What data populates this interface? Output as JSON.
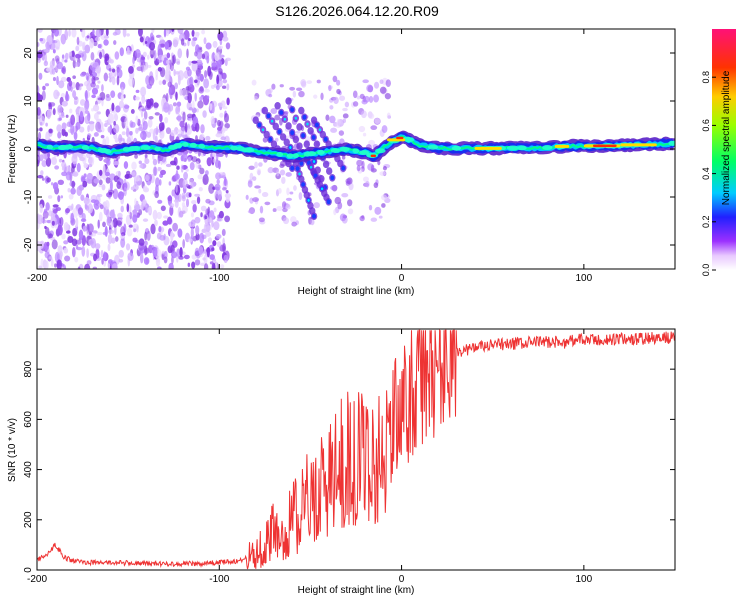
{
  "title": "S126.2026.064.12.20.R09",
  "colors": {
    "snr_line": "#ee3333",
    "axis": "#000000",
    "background": "#ffffff"
  },
  "chart_data": [
    {
      "type": "heatmap",
      "title": "S126.2026.064.12.20.R09",
      "xlabel": "Height of straight line (km)",
      "ylabel": "Frequency (Hz)",
      "xlim": [
        -200,
        150
      ],
      "ylim": [
        -25,
        25
      ],
      "x_ticks": [
        -200,
        -100,
        0,
        100
      ],
      "x_tick_labels": [
        "-200",
        "-100",
        "0",
        "100"
      ],
      "y_ticks": [
        -20,
        -10,
        0,
        10,
        20
      ],
      "y_tick_labels": [
        "-20",
        "-10",
        "0",
        "10",
        "20"
      ],
      "colorbar": {
        "label": "Normalized spectral amplitude",
        "range": [
          0,
          1
        ],
        "ticks": [
          0,
          0.2,
          0.4,
          0.6,
          0.8
        ],
        "tick_labels": [
          "0.0",
          "0.2",
          "0.4",
          "0.6",
          "0.8"
        ]
      },
      "ridge": [
        {
          "x": -200,
          "f": 0.8
        },
        {
          "x": -190,
          "f": 0.2
        },
        {
          "x": -180,
          "f": 0.5
        },
        {
          "x": -170,
          "f": 0.2
        },
        {
          "x": -160,
          "f": -0.6
        },
        {
          "x": -150,
          "f": 0.0
        },
        {
          "x": -140,
          "f": 0.3
        },
        {
          "x": -130,
          "f": -0.2
        },
        {
          "x": -120,
          "f": 1.0
        },
        {
          "x": -110,
          "f": 0.6
        },
        {
          "x": -100,
          "f": 0.3
        },
        {
          "x": -90,
          "f": 0.2
        },
        {
          "x": -80,
          "f": -0.5
        },
        {
          "x": -70,
          "f": -1.0
        },
        {
          "x": -60,
          "f": -1.5
        },
        {
          "x": -50,
          "f": -1.0
        },
        {
          "x": -40,
          "f": -0.5
        },
        {
          "x": -30,
          "f": 0.0
        },
        {
          "x": -20,
          "f": -0.8
        },
        {
          "x": -15,
          "f": -1.5
        },
        {
          "x": -10,
          "f": 0.2
        },
        {
          "x": -5,
          "f": 1.5
        },
        {
          "x": 0,
          "f": 2.5
        },
        {
          "x": 5,
          "f": 1.8
        },
        {
          "x": 10,
          "f": 0.8
        },
        {
          "x": 20,
          "f": 0.2
        },
        {
          "x": 40,
          "f": 0.1
        },
        {
          "x": 60,
          "f": 0.2
        },
        {
          "x": 80,
          "f": 0.3
        },
        {
          "x": 90,
          "f": 0.6
        },
        {
          "x": 100,
          "f": 0.6
        },
        {
          "x": 120,
          "f": 0.7
        },
        {
          "x": 140,
          "f": 1.0
        },
        {
          "x": 150,
          "f": 1.2
        }
      ]
    },
    {
      "type": "line",
      "xlabel": "Height of straight line (km)",
      "ylabel": "SNR (10 * v/v)",
      "xlim": [
        -200,
        150
      ],
      "ylim": [
        0,
        960
      ],
      "x_ticks": [
        -200,
        -100,
        0,
        100
      ],
      "x_tick_labels": [
        "-200",
        "-100",
        "0",
        "100"
      ],
      "y_ticks": [
        0,
        200,
        400,
        600,
        800
      ],
      "y_tick_labels": [
        "0",
        "200",
        "400",
        "600",
        "800"
      ],
      "series": [
        {
          "name": "SNR",
          "x": [
            -200,
            -195,
            -190,
            -185,
            -180,
            -170,
            -160,
            -150,
            -140,
            -130,
            -120,
            -110,
            -100,
            -90,
            -80,
            -75,
            -70,
            -65,
            -60,
            -55,
            -50,
            -45,
            -40,
            -35,
            -30,
            -25,
            -20,
            -15,
            -10,
            -5,
            0,
            5,
            10,
            15,
            20,
            25,
            30,
            40,
            50,
            60,
            70,
            80,
            90,
            95,
            100,
            110,
            120,
            130,
            140,
            150
          ],
          "values": [
            40,
            55,
            100,
            50,
            35,
            30,
            30,
            28,
            25,
            25,
            25,
            25,
            30,
            35,
            60,
            110,
            150,
            110,
            220,
            230,
            300,
            320,
            360,
            390,
            460,
            420,
            470,
            420,
            480,
            560,
            640,
            700,
            740,
            780,
            820,
            850,
            870,
            885,
            895,
            900,
            905,
            910,
            905,
            920,
            915,
            915,
            920,
            920,
            925,
            925
          ]
        }
      ]
    }
  ]
}
